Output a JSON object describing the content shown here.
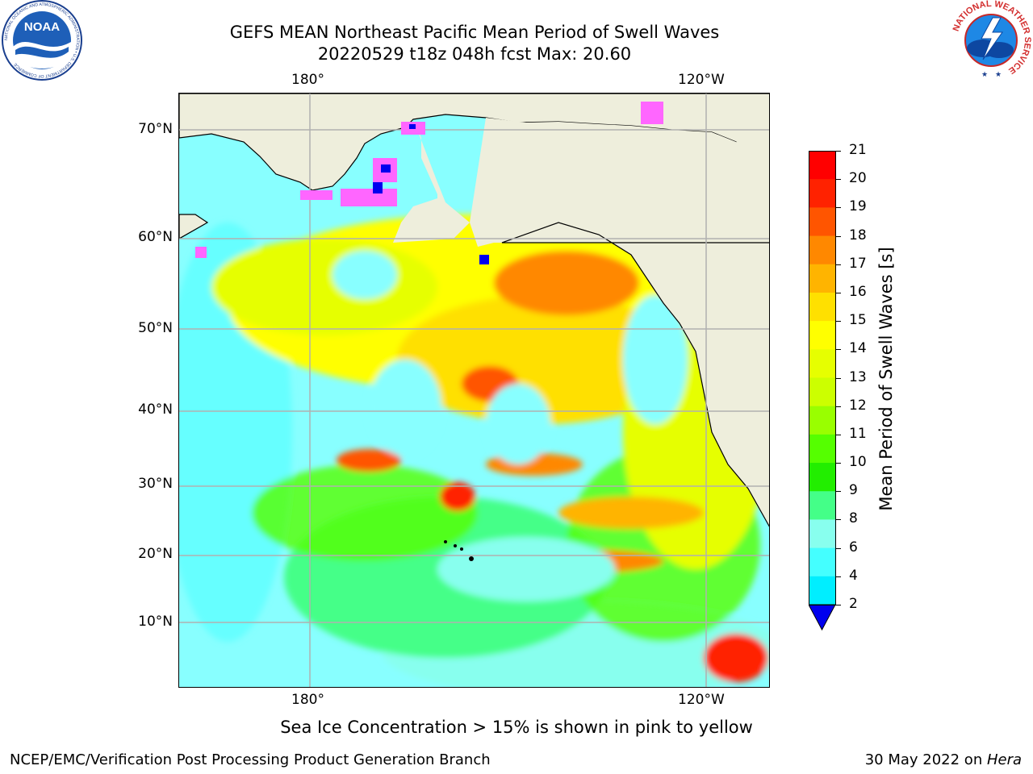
{
  "title_line1": "GEFS MEAN Northeast Pacific Mean Period of Swell Waves",
  "title_line2": "20220529 t18z 048h fcst   Max: 20.60",
  "noaa_logo_text": "NOAA",
  "noaa_ring_text": "NATIONAL OCEANIC AND ATMOSPHERIC ADMINISTRATION • U.S. DEPARTMENT OF COMMERCE",
  "nws_ring_text": "NATIONAL WEATHER SERVICE",
  "map": {
    "lat_labels": [
      "70°N",
      "60°N",
      "50°N",
      "40°N",
      "30°N",
      "20°N",
      "10°N"
    ],
    "lon_labels_top": [
      "180°",
      "120°W"
    ],
    "lon_labels_bottom": [
      "180°",
      "120°W"
    ],
    "land_color": "#eeeedc",
    "grid_color": "#b0b0b0"
  },
  "colorbar": {
    "label": "Mean Period of Swell Waves [s]",
    "ticks": [
      "21",
      "20",
      "19",
      "18",
      "17",
      "16",
      "15",
      "14",
      "13",
      "12",
      "11",
      "10",
      "9",
      "8",
      "6",
      "4",
      "2"
    ],
    "colors": [
      "#ff0000",
      "#ff2200",
      "#ff5500",
      "#ff8800",
      "#ffb400",
      "#ffe000",
      "#ffff00",
      "#e6ff00",
      "#ccff00",
      "#99ff00",
      "#55ff00",
      "#22ee00",
      "#44ff88",
      "#88ffee",
      "#44ffff",
      "#00eeff",
      "#00b4ff",
      "#0066ff",
      "#0000ee"
    ]
  },
  "caption": "Sea Ice Concentration > 15% is shown in pink to yellow",
  "footer_left": "NCEP/EMC/Verification Post Processing Product Generation Branch",
  "footer_date": "30 May 2022 on ",
  "footer_host": "Hera"
}
